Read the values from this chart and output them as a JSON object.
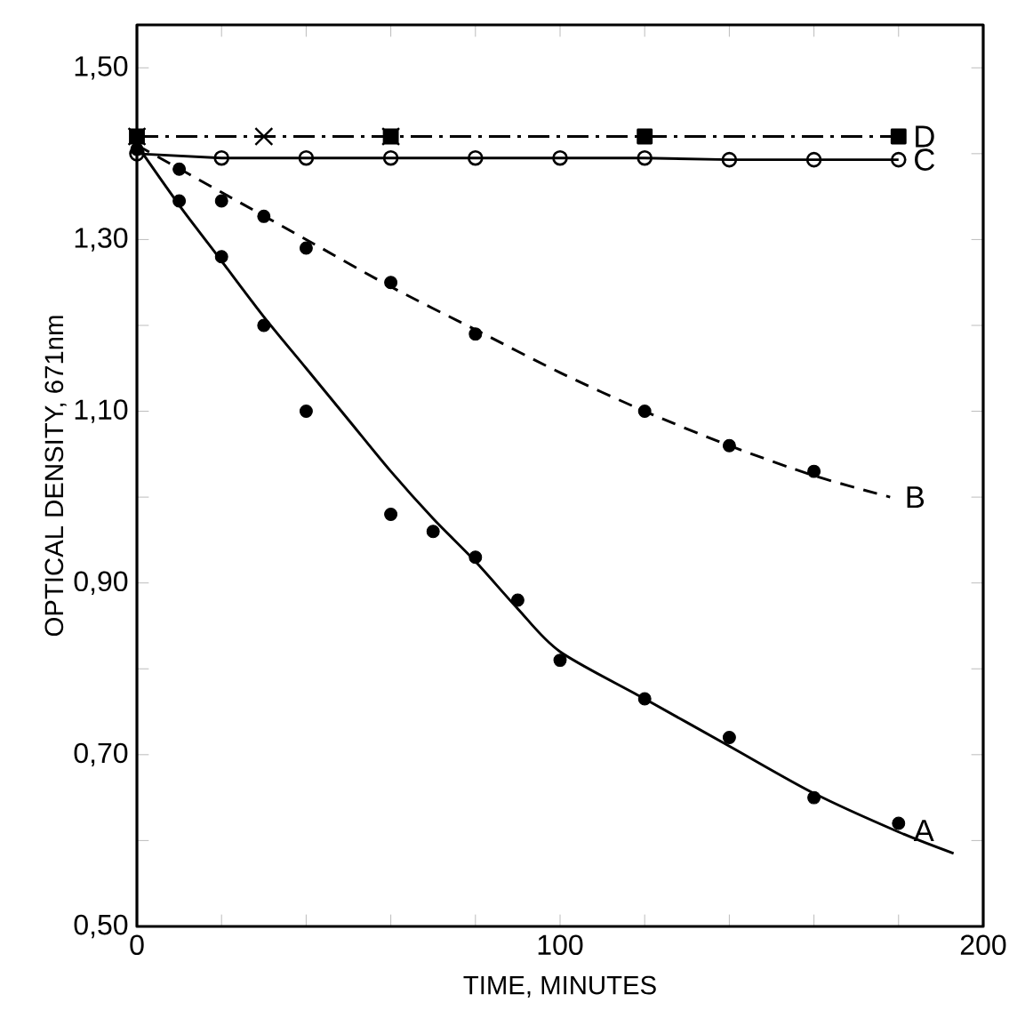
{
  "chart_data": {
    "type": "line",
    "xlabel": "TIME, MINUTES",
    "ylabel": "OPTICAL DENSITY, 671nm",
    "xlim": [
      0,
      200
    ],
    "ylim": [
      0.5,
      1.55
    ],
    "xticks": [
      0,
      {
        "value": 20,
        "label": null
      },
      {
        "value": 40,
        "label": null
      },
      {
        "value": 60,
        "label": null
      },
      {
        "value": 80,
        "label": null
      },
      100,
      {
        "value": 120,
        "label": null
      },
      {
        "value": 140,
        "label": null
      },
      {
        "value": 160,
        "label": null
      },
      {
        "value": 180,
        "label": null
      },
      200
    ],
    "yticks": [
      {
        "value": 0.5,
        "label": "0,50"
      },
      {
        "value": 0.6,
        "label": null
      },
      {
        "value": 0.7,
        "label": "0,70"
      },
      {
        "value": 0.8,
        "label": null
      },
      {
        "value": 0.9,
        "label": "0,90"
      },
      {
        "value": 1.0,
        "label": null
      },
      {
        "value": 1.1,
        "label": "1,10"
      },
      {
        "value": 1.2,
        "label": null
      },
      {
        "value": 1.3,
        "label": "1,30"
      },
      {
        "value": 1.4,
        "label": null
      },
      {
        "value": 1.5,
        "label": "1,50"
      }
    ],
    "series": [
      {
        "type": "scatter",
        "marker": "circle",
        "color": "#000000",
        "x": [
          0,
          10,
          20,
          30,
          40,
          60,
          70,
          80,
          90,
          100,
          120,
          140,
          160,
          180
        ],
        "values": [
          1.405,
          1.345,
          1.28,
          1.2,
          1.1,
          0.98,
          0.96,
          0.93,
          0.88,
          0.81,
          0.765,
          0.72,
          0.65,
          0.62
        ]
      },
      {
        "type": "line",
        "name": "A",
        "marker": "none",
        "line_style": "solid",
        "color": "#000000",
        "x": [
          0,
          10,
          20,
          30,
          40,
          50,
          60,
          70,
          80,
          90,
          100,
          120,
          140,
          160,
          180,
          193
        ],
        "values": [
          1.41,
          1.34,
          1.275,
          1.21,
          1.15,
          1.09,
          1.03,
          0.975,
          0.925,
          0.87,
          0.82,
          0.765,
          0.71,
          0.655,
          0.61,
          0.585
        ]
      },
      {
        "type": "scatter",
        "marker": "circle",
        "color": "#000000",
        "x": [
          10,
          20,
          30,
          40,
          60,
          80,
          120,
          140,
          160
        ],
        "values": [
          1.382,
          1.345,
          1.327,
          1.29,
          1.25,
          1.19,
          1.1,
          1.06,
          1.03
        ]
      },
      {
        "type": "line",
        "name": "B",
        "marker": "none",
        "line_style": "dashed",
        "color": "#000000",
        "x": [
          0,
          20,
          40,
          60,
          80,
          100,
          120,
          140,
          160,
          178
        ],
        "values": [
          1.41,
          1.355,
          1.3,
          1.245,
          1.195,
          1.145,
          1.1,
          1.06,
          1.025,
          1.0
        ]
      },
      {
        "type": "line",
        "name": "C",
        "marker": "circle-open",
        "line_style": "solid",
        "color": "#000000",
        "x": [
          0,
          20,
          40,
          60,
          80,
          100,
          120,
          140,
          160,
          180
        ],
        "values": [
          1.4,
          1.395,
          1.395,
          1.395,
          1.395,
          1.395,
          1.395,
          1.393,
          1.393,
          1.393
        ]
      },
      {
        "type": "line",
        "name": "D",
        "marker": "square",
        "line_style": "dashdot",
        "color": "#000000",
        "x": [
          0,
          60,
          120,
          180
        ],
        "values": [
          1.42,
          1.42,
          1.42,
          1.42
        ]
      },
      {
        "type": "scatter",
        "marker": "cross",
        "color": "#000000",
        "x": [
          0,
          30,
          60
        ],
        "values": [
          1.42,
          1.42,
          1.42
        ]
      }
    ]
  }
}
